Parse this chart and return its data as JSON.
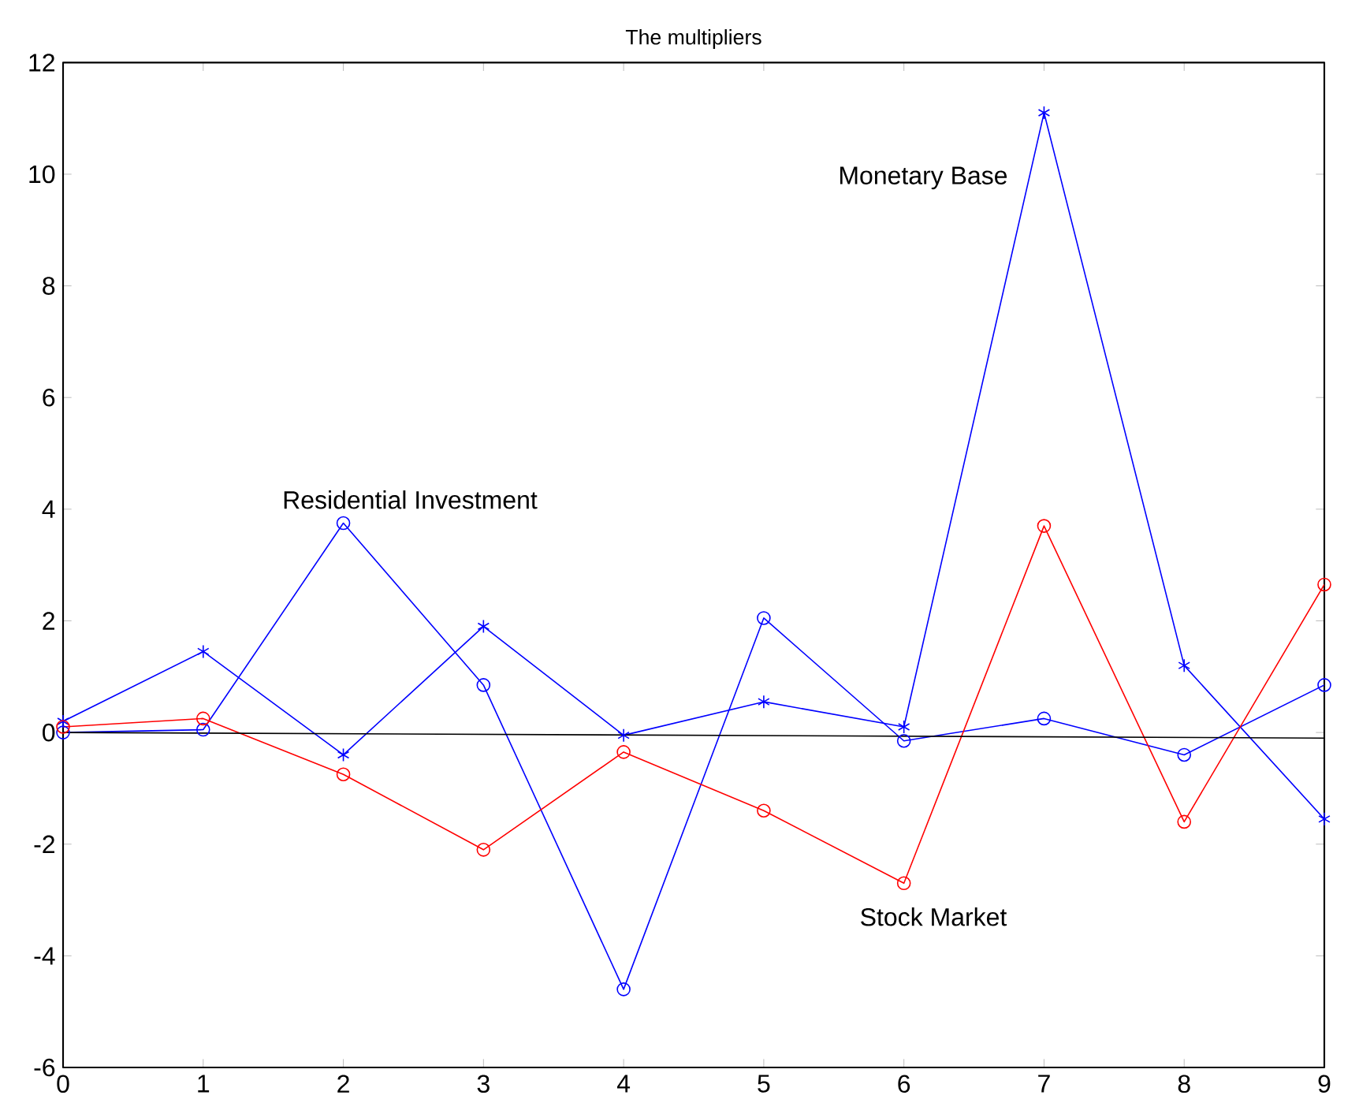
{
  "chart_data": {
    "type": "line",
    "title": "The multipliers",
    "xlim": [
      0,
      9
    ],
    "ylim": [
      -6,
      12
    ],
    "xticks": [
      0,
      1,
      2,
      3,
      4,
      5,
      6,
      7,
      8,
      9
    ],
    "yticks": [
      -6,
      -4,
      -2,
      0,
      2,
      4,
      6,
      8,
      10,
      12
    ],
    "grid": false,
    "x": [
      0,
      1,
      2,
      3,
      4,
      5,
      6,
      7,
      8,
      9
    ],
    "series": [
      {
        "color": "#0000ff",
        "marker": "cross",
        "values": [
          0.2,
          1.45,
          -0.4,
          1.9,
          -0.05,
          0.55,
          0.1,
          11.1,
          1.2,
          -1.55
        ]
      },
      {
        "color": "#0000ff",
        "marker": "circle",
        "values": [
          0,
          0.05,
          3.75,
          0.85,
          -4.6,
          2.05,
          -0.15,
          0.25,
          -0.4,
          0.85
        ]
      },
      {
        "color": "#ff0000",
        "marker": "circle",
        "values": [
          0.1,
          0.25,
          -0.75,
          -2.1,
          -0.35,
          -1.4,
          -2.7,
          3.7,
          -1.6,
          2.65
        ]
      },
      {
        "color": "#000000",
        "marker": "none",
        "x": [
          0,
          9
        ],
        "values": [
          0,
          -0.1
        ]
      }
    ],
    "annotations": [
      "Monetary Base",
      "Residential Investment",
      "Stock Market"
    ]
  }
}
